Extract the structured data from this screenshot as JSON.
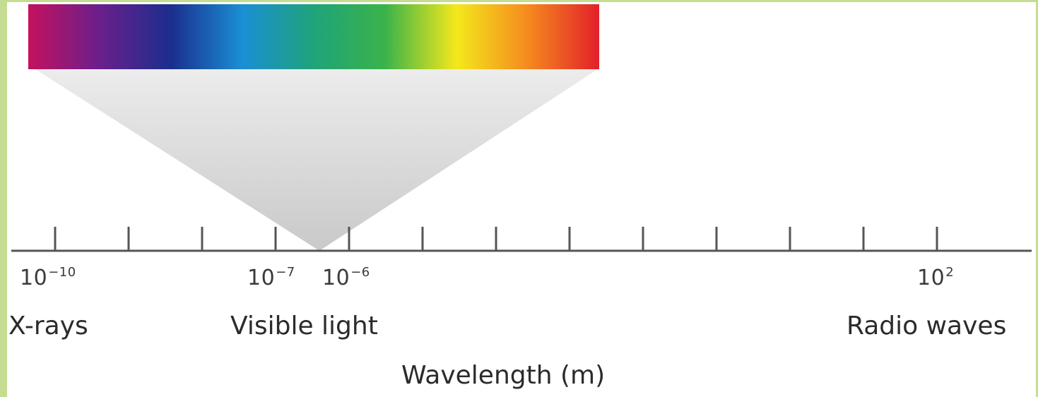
{
  "spectrum": {
    "colors": [
      "#c4115e",
      "#6a1f8c",
      "#1b2e8e",
      "#1a8fd4",
      "#1fa37a",
      "#3bb34a",
      "#f4e81c",
      "#f58a1e",
      "#e3202a"
    ]
  },
  "axis": {
    "tick_count": 13,
    "tick_labels": [
      {
        "base": "10",
        "exponent": "−10"
      },
      {
        "base": "10",
        "exponent": "−7"
      },
      {
        "base": "10",
        "exponent": "−6"
      },
      {
        "base": "10",
        "exponent": "2"
      }
    ],
    "band_labels": {
      "xrays": "X-rays",
      "visible": "Visible light",
      "radio": "Radio waves"
    },
    "title": "Wavelength (m)",
    "line_color": "#555555"
  }
}
